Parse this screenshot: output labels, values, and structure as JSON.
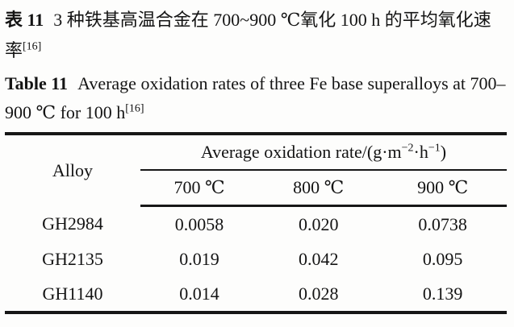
{
  "caption_zh": {
    "label": "表 11",
    "text": "3 种铁基高温合金在 700~900 ℃氧化 100 h 的平均氧化速率",
    "ref": "[16]"
  },
  "caption_en": {
    "label": "Table 11",
    "text": "Average oxidation rates of three Fe base superalloys at 700–900 ℃ for 100 h",
    "ref": "[16]"
  },
  "table": {
    "col_alloy": "Alloy",
    "rate_header": {
      "prefix": "Average oxidation rate/(g·m",
      "sup1": "−2",
      "mid": "·h",
      "sup2": "−1",
      "suffix": ")"
    },
    "temp_cols": [
      "700 ℃",
      "800 ℃",
      "900 ℃"
    ],
    "rows": [
      {
        "alloy": "GH2984",
        "values": [
          "0.0058",
          "0.020",
          "0.0738"
        ]
      },
      {
        "alloy": "GH2135",
        "values": [
          "0.019",
          "0.042",
          "0.095"
        ]
      },
      {
        "alloy": "GH1140",
        "values": [
          "0.014",
          "0.028",
          "0.139"
        ]
      }
    ]
  },
  "chart_data": {
    "type": "table",
    "title": "Average oxidation rates of three Fe base superalloys at 700–900 ℃ for 100 h",
    "unit": "g·m⁻²·h⁻¹",
    "columns": [
      "Alloy",
      "700 ℃",
      "800 ℃",
      "900 ℃"
    ],
    "rows": [
      [
        "GH2984",
        0.0058,
        0.02,
        0.0738
      ],
      [
        "GH2135",
        0.019,
        0.042,
        0.095
      ],
      [
        "GH1140",
        0.014,
        0.028,
        0.139
      ]
    ]
  }
}
